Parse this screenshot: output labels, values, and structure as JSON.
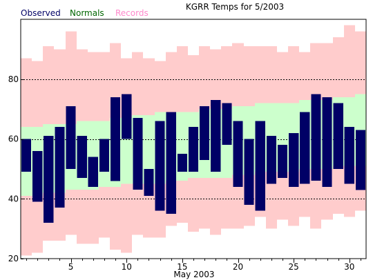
{
  "chart_data": {
    "type": "bar",
    "title": "KGRR Temps for 5/2003",
    "xlabel": "May 2003",
    "ylabel": "",
    "xlim": [
      0.5,
      31.5
    ],
    "ylim": [
      20,
      100
    ],
    "grid": "dashed horizontal at 40, 60, 80",
    "legend_placement": "top-left",
    "x_ticks": [
      5,
      10,
      15,
      20,
      25,
      30
    ],
    "y_ticks": [
      20,
      40,
      60,
      80
    ],
    "days": [
      1,
      2,
      3,
      4,
      5,
      6,
      7,
      8,
      9,
      10,
      11,
      12,
      13,
      14,
      15,
      16,
      17,
      18,
      19,
      20,
      21,
      22,
      23,
      24,
      25,
      26,
      27,
      28,
      29,
      30,
      31
    ],
    "series": [
      {
        "name": "Records",
        "color": "#ffcccc",
        "high": [
          87,
          86,
          91,
          90,
          96,
          90,
          89,
          89,
          92,
          87,
          89,
          87,
          86,
          89,
          91,
          88,
          91,
          90,
          91,
          92,
          91,
          91,
          91,
          89,
          91,
          89,
          92,
          92,
          94,
          98,
          96
        ],
        "low": [
          21,
          22,
          26,
          26,
          28,
          25,
          25,
          27,
          23,
          22,
          28,
          27,
          27,
          31,
          32,
          29,
          30,
          28,
          30,
          30,
          31,
          34,
          30,
          33,
          31,
          34,
          30,
          33,
          35,
          34,
          36
        ]
      },
      {
        "name": "Normals",
        "color": "#ccffcc",
        "high": [
          64,
          64,
          65,
          65,
          65,
          66,
          66,
          66,
          67,
          67,
          68,
          68,
          69,
          69,
          69,
          69,
          70,
          70,
          70,
          71,
          71,
          72,
          72,
          72,
          72,
          73,
          73,
          73,
          74,
          74,
          75
        ],
        "low": [
          41,
          41,
          42,
          42,
          43,
          43,
          43,
          44,
          44,
          45,
          45,
          45,
          45,
          46,
          46,
          47,
          47,
          47,
          47,
          48,
          48,
          49,
          49,
          49,
          49,
          50,
          50,
          50,
          51,
          51,
          51
        ]
      },
      {
        "name": "Observed",
        "color": "#000066",
        "high": [
          60,
          56,
          61,
          64,
          71,
          61,
          54,
          60,
          74,
          75,
          67,
          50,
          66,
          69,
          55,
          64,
          71,
          73,
          72,
          66,
          60,
          66,
          61,
          58,
          62,
          69,
          75,
          74,
          72,
          64,
          63
        ],
        "low": [
          49,
          39,
          32,
          37,
          50,
          47,
          44,
          49,
          46,
          60,
          43,
          41,
          36,
          35,
          49,
          49,
          53,
          49,
          58,
          44,
          38,
          36,
          45,
          47,
          44,
          45,
          46,
          44,
          50,
          45,
          43
        ]
      }
    ]
  }
}
